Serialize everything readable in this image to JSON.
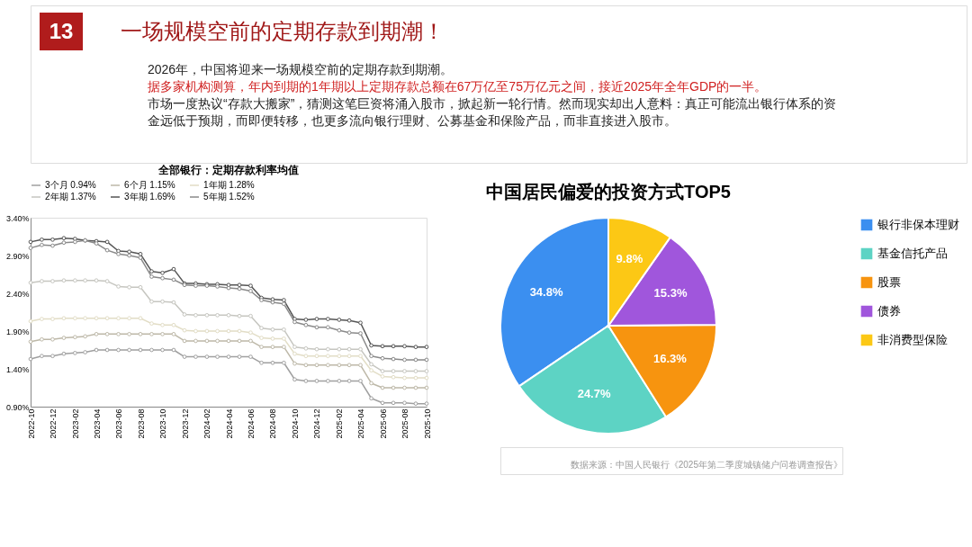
{
  "chart_data": [
    {
      "type": "line",
      "title": "全部银行：定期存款利率均值",
      "marker": "circle",
      "legend": "top",
      "grid": false,
      "annotations": [
        "13",
        "一场规模空前的定期存款到期潮！",
        "2026年，中国将迎来一场规模空前的定期存款到期潮。",
        "据多家机构测算，年内到期的1年期以上定期存款总额在67万亿至75万亿元之间，接近2025年全年GDP的一半。",
        "市场一度热议“存款大搬家”，猜测这笔巨资将涌入股市，掀起新一轮行情。然而现实却出人意料：真正可能流出银行体系的资金远低于预期，而即便转移，也更多流向银行理财、公募基金和保险产品，而非直接进入股市。"
      ],
      "x": [
        "2022-10",
        "2022-11",
        "2022-12",
        "2023-01",
        "2023-02",
        "2023-03",
        "2023-04",
        "2023-05",
        "2023-06",
        "2023-07",
        "2023-08",
        "2023-09",
        "2023-10",
        "2023-11",
        "2023-12",
        "2024-01",
        "2024-02",
        "2024-03",
        "2024-04",
        "2024-05",
        "2024-06",
        "2024-07",
        "2024-08",
        "2024-09",
        "2024-10",
        "2024-11",
        "2024-12",
        "2025-01",
        "2025-02",
        "2025-03",
        "2025-04",
        "2025-05",
        "2025-06",
        "2025-07",
        "2025-08",
        "2025-09",
        "2025-10"
      ],
      "xlim": [
        "2022-10",
        "2025-10"
      ],
      "xticks": [
        "2022-10",
        "2022-12",
        "2023-02",
        "2023-04",
        "2023-06",
        "2023-08",
        "2023-10",
        "2023-12",
        "2024-02",
        "2024-04",
        "2024-06",
        "2024-08",
        "2024-10",
        "2024-12",
        "2025-02",
        "2025-04",
        "2025-06",
        "2025-08",
        "2025-10"
      ],
      "ylim": [
        0.9,
        3.4
      ],
      "yticks": [
        {
          "value": 0.9,
          "label": "0.90%"
        },
        {
          "value": 1.4,
          "label": "1.40%"
        },
        {
          "value": 1.9,
          "label": "1.90%"
        },
        {
          "value": 2.4,
          "label": "2.40%"
        },
        {
          "value": 2.9,
          "label": "2.90%"
        },
        {
          "value": 3.4,
          "label": "3.40%"
        }
      ],
      "series": [
        {
          "name": "3个月  0.94%",
          "color": "#a0a0a0",
          "values": [
            1.53,
            1.57,
            1.57,
            1.6,
            1.61,
            1.62,
            1.65,
            1.65,
            1.65,
            1.65,
            1.65,
            1.65,
            1.65,
            1.65,
            1.56,
            1.56,
            1.56,
            1.56,
            1.56,
            1.56,
            1.56,
            1.48,
            1.48,
            1.48,
            1.26,
            1.24,
            1.24,
            1.24,
            1.24,
            1.24,
            1.24,
            1.01,
            0.95,
            0.95,
            0.95,
            0.94,
            0.94
          ]
        },
        {
          "name": "6个月  1.15%",
          "color": "#bdb8a8",
          "values": [
            1.76,
            1.79,
            1.79,
            1.81,
            1.82,
            1.83,
            1.86,
            1.86,
            1.86,
            1.86,
            1.86,
            1.86,
            1.86,
            1.86,
            1.77,
            1.77,
            1.77,
            1.77,
            1.77,
            1.77,
            1.77,
            1.69,
            1.69,
            1.69,
            1.47,
            1.45,
            1.45,
            1.45,
            1.45,
            1.45,
            1.45,
            1.21,
            1.15,
            1.15,
            1.15,
            1.15,
            1.15
          ]
        },
        {
          "name": "1年期  1.28%",
          "color": "#e2ddc6",
          "values": [
            2.03,
            2.06,
            2.06,
            2.07,
            2.07,
            2.07,
            2.07,
            2.07,
            2.07,
            2.07,
            2.07,
            2.0,
            1.98,
            1.98,
            1.91,
            1.9,
            1.9,
            1.9,
            1.9,
            1.9,
            1.88,
            1.81,
            1.8,
            1.8,
            1.6,
            1.57,
            1.57,
            1.57,
            1.57,
            1.57,
            1.57,
            1.38,
            1.3,
            1.29,
            1.28,
            1.28,
            1.28
          ]
        },
        {
          "name": "2年期  1.37%",
          "color": "#c6c6c0",
          "values": [
            2.54,
            2.56,
            2.56,
            2.57,
            2.57,
            2.57,
            2.57,
            2.56,
            2.49,
            2.48,
            2.48,
            2.29,
            2.29,
            2.28,
            2.12,
            2.11,
            2.11,
            2.11,
            2.11,
            2.1,
            2.1,
            1.94,
            1.92,
            1.92,
            1.69,
            1.67,
            1.66,
            1.66,
            1.66,
            1.66,
            1.66,
            1.46,
            1.37,
            1.37,
            1.37,
            1.37,
            1.37
          ]
        },
        {
          "name": "3年期  1.69%",
          "color": "#555555",
          "values": [
            3.08,
            3.11,
            3.11,
            3.13,
            3.12,
            3.1,
            3.09,
            3.08,
            2.96,
            2.95,
            2.92,
            2.69,
            2.67,
            2.72,
            2.53,
            2.53,
            2.52,
            2.52,
            2.51,
            2.51,
            2.5,
            2.34,
            2.32,
            2.31,
            2.06,
            2.05,
            2.06,
            2.06,
            2.05,
            2.04,
            2.01,
            1.71,
            1.7,
            1.7,
            1.7,
            1.69,
            1.69
          ]
        },
        {
          "name": "5年期  1.52%",
          "color": "#8a8a8a",
          "values": [
            3.0,
            3.04,
            3.03,
            3.07,
            3.08,
            3.1,
            3.06,
            2.97,
            2.92,
            2.9,
            2.87,
            2.62,
            2.6,
            2.58,
            2.51,
            2.5,
            2.5,
            2.49,
            2.47,
            2.46,
            2.43,
            2.31,
            2.28,
            2.26,
            2.02,
            1.98,
            1.95,
            1.95,
            1.91,
            1.88,
            1.87,
            1.57,
            1.54,
            1.53,
            1.52,
            1.52,
            1.52
          ]
        }
      ]
    },
    {
      "type": "pie",
      "title": "中国居民偏爱的投资方式TOP5",
      "legend": "right",
      "categories": [
        "银行非保本理财",
        "基金信托产品",
        "股票",
        "债券",
        "非消费型保险"
      ],
      "values": [
        34.8,
        24.7,
        16.3,
        15.3,
        9.8
      ],
      "value_labels": [
        "34.8%",
        "24.7%",
        "16.3%",
        "15.3%",
        "9.8%"
      ],
      "colors": [
        "#3b8ff0",
        "#5dd3c4",
        "#f7940f",
        "#a056dc",
        "#fcc815"
      ],
      "annotations": [
        "数据来源：中国人民银行《2025年第二季度城镇储户问卷调查报告》"
      ]
    }
  ]
}
